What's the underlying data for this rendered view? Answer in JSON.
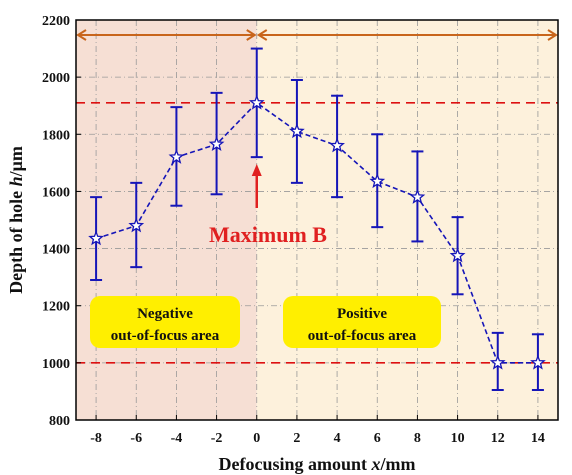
{
  "chart_data": {
    "type": "line",
    "xlabel_prefix": "Defocusing amount ",
    "xlabel_var": "x",
    "xlabel_unit": "/mm",
    "ylabel_prefix": "Depth of hole ",
    "ylabel_var": "h",
    "ylabel_unit": "/μm",
    "xlim": [
      -9,
      15
    ],
    "ylim": [
      800,
      2200
    ],
    "x_ticks": [
      -8,
      -6,
      -4,
      -2,
      0,
      2,
      4,
      6,
      8,
      10,
      12,
      14
    ],
    "y_ticks": [
      800,
      1000,
      1200,
      1400,
      1600,
      1800,
      2000,
      2200
    ],
    "grid": true,
    "series": [
      {
        "x": [
          -8,
          -6,
          -4,
          -2,
          0,
          2,
          4,
          6,
          8,
          10,
          12,
          14
        ],
        "y": [
          1435,
          1480,
          1720,
          1765,
          1910,
          1810,
          1760,
          1635,
          1580,
          1375,
          1000,
          1000
        ],
        "err_low": [
          1290,
          1335,
          1550,
          1590,
          1720,
          1630,
          1580,
          1475,
          1425,
          1240,
          905,
          905
        ],
        "err_high": [
          1580,
          1630,
          1895,
          1945,
          2100,
          1990,
          1935,
          1800,
          1740,
          1510,
          1105,
          1100
        ],
        "color": "#1515b8",
        "marker": "star",
        "linestyle": "dashed"
      }
    ],
    "hlines": [
      {
        "y": 1910,
        "color": "#dd1111"
      },
      {
        "y": 1000,
        "color": "#dd1111"
      }
    ],
    "regions": [
      {
        "from": -9,
        "to": 0,
        "color": "#f6dfd4"
      },
      {
        "from": 0,
        "to": 15,
        "color": "#fdf1dc"
      }
    ],
    "range_arrow_color": "#c8651b",
    "annotations": {
      "maximum": {
        "text": "Maximum B",
        "x": 0,
        "color": "#e02020"
      },
      "negative_label": {
        "line1": "Negative",
        "line2": "out-of-focus area",
        "color": "#ffef00"
      },
      "positive_label": {
        "line1": "Positive",
        "line2": "out-of-focus area",
        "color": "#ffef00"
      }
    }
  }
}
